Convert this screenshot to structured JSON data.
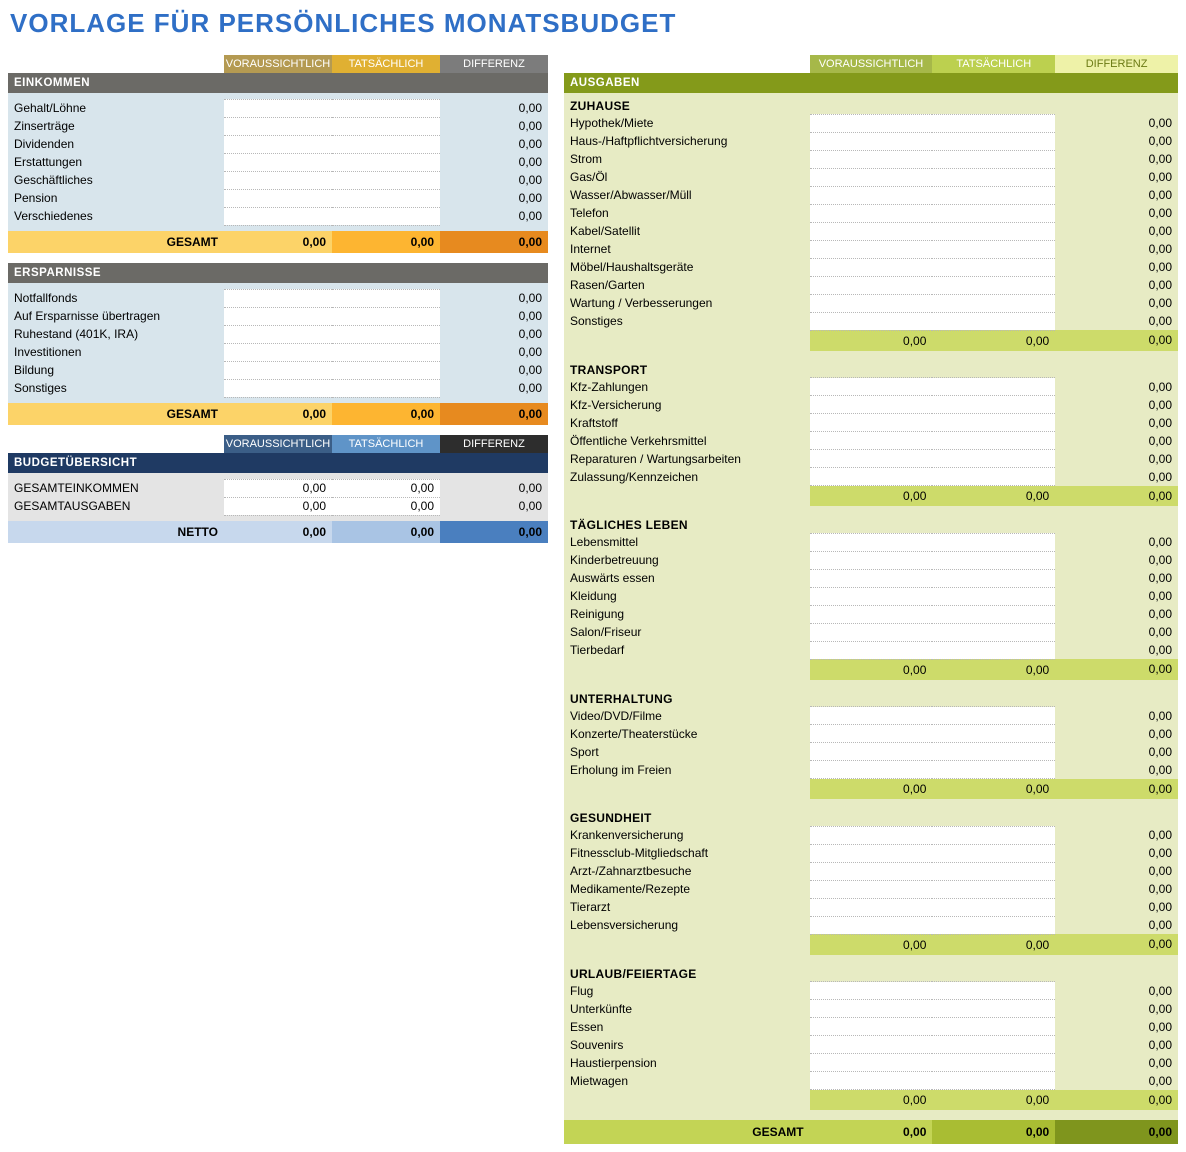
{
  "zero": "0,00",
  "title": {
    "text": "VORLAGE FÜR PERSÖNLICHES MONATSBUDGET",
    "color": "#2f6fc6"
  },
  "headers": {
    "projected": "VORAUSSICHTLICH",
    "actual": "TATSÄCHLICH",
    "diff": "DIFFERENZ"
  },
  "left": {
    "pill_colors_warm": {
      "p1": "#b49a52",
      "p2": "#e0b032",
      "p3": "#7c7c7c"
    },
    "pill_colors_blue": {
      "p1": "#3b5e87",
      "p2": "#5f94c8",
      "p3": "#2d2d2d"
    },
    "orange_total": {
      "label": "GESAMT",
      "c1": "#fcd368",
      "c2": "#fdb531",
      "c3": "#e78a1f"
    },
    "income": {
      "bar_label": "EINKOMMEN",
      "bar_color": "#6b6a66",
      "body_rows": [
        "Gehalt/Löhne",
        "Zinserträge",
        "Dividenden",
        "Erstattungen",
        "Geschäftliches",
        "Pension",
        "Verschiedenes"
      ]
    },
    "savings": {
      "bar_label": "ERSPARNISSE",
      "bar_color": "#6b6a66",
      "body_rows": [
        "Notfallfonds",
        "Auf Ersparnisse übertragen",
        "Ruhestand (401K, IRA)",
        "Investitionen",
        "Bildung",
        "Sonstiges"
      ]
    },
    "overview": {
      "bar_label": "BUDGETÜBERSICHT",
      "bar_color": "#1f3a63",
      "rows": [
        "GESAMTEINKOMMEN",
        "GESAMTAUSGABEN"
      ],
      "netto_label": "NETTO",
      "netto_colors": {
        "c1": "#c7d8ed",
        "c2": "#a9c4e4",
        "c3": "#4a7fbf"
      }
    }
  },
  "right": {
    "bar_label": "AUSGABEN",
    "bar_color": "#849a1a",
    "pill_colors": {
      "p1": "#a6b849",
      "p2": "#bcd04f",
      "p3": "#eef2a8",
      "p3_text": "#6b7a14"
    },
    "body_bg": "#e7ebc4",
    "subtotal_bg": "#cddb6a",
    "grand": {
      "label": "GESAMT",
      "c1": "#c3d455",
      "c2": "#a9bd33",
      "c3": "#7f951d"
    },
    "sections": [
      {
        "title": "ZUHAUSE",
        "rows": [
          "Hypothek/Miete",
          "Haus-/Haftpflichtversicherung",
          "Strom",
          "Gas/Öl",
          "Wasser/Abwasser/Müll",
          "Telefon",
          "Kabel/Satellit",
          "Internet",
          "Möbel/Haushaltsgeräte",
          "Rasen/Garten",
          "Wartung / Verbesserungen",
          "Sonstiges"
        ]
      },
      {
        "title": "TRANSPORT",
        "rows": [
          "Kfz-Zahlungen",
          "Kfz-Versicherung",
          "Kraftstoff",
          "Öffentliche Verkehrsmittel",
          "Reparaturen / Wartungsarbeiten",
          "Zulassung/Kennzeichen"
        ]
      },
      {
        "title": "TÄGLICHES LEBEN",
        "rows": [
          "Lebensmittel",
          "Kinderbetreuung",
          "Auswärts essen",
          "Kleidung",
          "Reinigung",
          "Salon/Friseur",
          "Tierbedarf"
        ]
      },
      {
        "title": "UNTERHALTUNG",
        "rows": [
          "Video/DVD/Filme",
          "Konzerte/Theaterstücke",
          "Sport",
          "Erholung im Freien"
        ]
      },
      {
        "title": "GESUNDHEIT",
        "rows": [
          "Krankenversicherung",
          "Fitnessclub-Mitgliedschaft",
          "Arzt-/Zahnarztbesuche",
          "Medikamente/Rezepte",
          "Tierarzt",
          "Lebensversicherung"
        ]
      },
      {
        "title": "URLAUB/FEIERTAGE",
        "rows": [
          "Flug",
          "Unterkünfte",
          "Essen",
          "Souvenirs",
          "Haustierpension",
          "Mietwagen"
        ]
      }
    ]
  }
}
